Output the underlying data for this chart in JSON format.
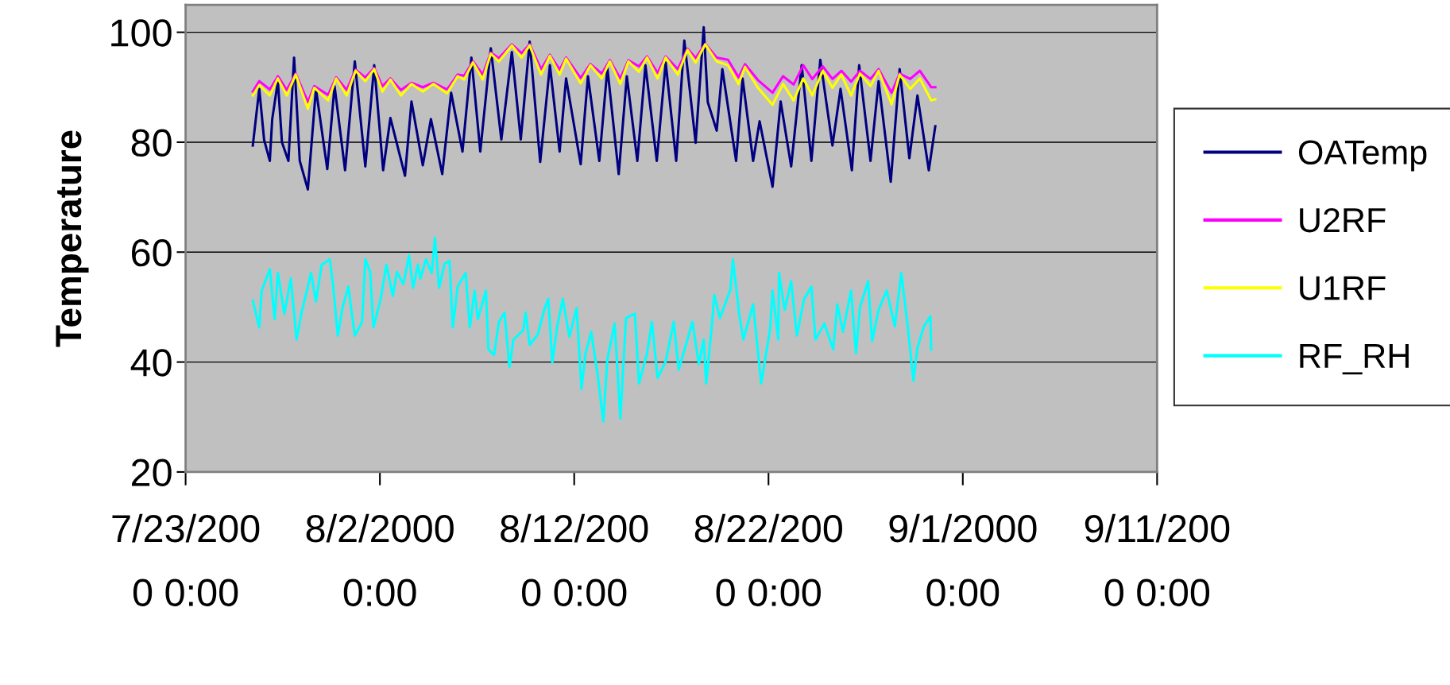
{
  "chart_data": {
    "type": "line",
    "ylabel": "Temperature",
    "line_style": "solid",
    "grid": "y",
    "legend": "right",
    "xlim": [
      "2000-07-23",
      "2000-09-11"
    ],
    "xticks": [
      {
        "value": "2000-07-23",
        "label": "7/23/2000 0:00"
      },
      {
        "value": "2000-08-02",
        "label": "8/2/2000 0:00"
      },
      {
        "value": "2000-08-12",
        "label": "8/12/2000 0:00"
      },
      {
        "value": "2000-08-22",
        "label": "8/22/2000 0:00"
      },
      {
        "value": "2000-09-01",
        "label": "9/1/2000 0:00"
      },
      {
        "value": "2000-09-11",
        "label": "9/11/2000 0:00"
      }
    ],
    "ylim": [
      20,
      105
    ],
    "yticks": [
      20,
      40,
      60,
      80,
      100
    ],
    "x": [
      "2000-07-26T11:00",
      "2000-07-26T19:00",
      "2000-07-27T08:00",
      "2000-07-27T18:00",
      "2000-07-28T05:00",
      "2000-07-28T16:00",
      "2000-07-29T07:00",
      "2000-07-29T15:00",
      "2000-07-30T08:00",
      "2000-07-30T18:00",
      "2000-07-31T07:00",
      "2000-07-31T18:00",
      "2000-08-01T06:00",
      "2000-08-01T17:00",
      "2000-08-02T03:00",
      "2000-08-02T13:00",
      "2000-08-03T02:00",
      "2000-08-03T15:00",
      "2000-08-04T05:00",
      "2000-08-04T18:00",
      "2000-08-05T11:00",
      "2000-08-06T00:00",
      "2000-08-06T08:00",
      "2000-08-06T19:00",
      "2000-08-07T07:00",
      "2000-08-07T17:00",
      "2000-08-08T03:00",
      "2000-08-08T19:00",
      "2000-08-09T07:00",
      "2000-08-09T17:00",
      "2000-08-10T07:00",
      "2000-08-10T18:00",
      "2000-08-11T06:00",
      "2000-08-11T14:00",
      "2000-08-12T08:00",
      "2000-08-12T20:00",
      "2000-08-13T10:00",
      "2000-08-13T20:00",
      "2000-08-14T09:00",
      "2000-08-14T19:00",
      "2000-08-15T08:00",
      "2000-08-15T18:00",
      "2000-08-16T07:00",
      "2000-08-16T17:00",
      "2000-08-17T08:00",
      "2000-08-17T20:00",
      "2000-08-18T06:00",
      "2000-08-18T18:00",
      "2000-08-19T08:00",
      "2000-08-19T22:00",
      "2000-08-20T11:00",
      "2000-08-20T19:00",
      "2000-08-21T11:00",
      "2000-08-22T05:00",
      "2000-08-22T18:00",
      "2000-08-23T07:00",
      "2000-08-23T19:00",
      "2000-08-24T06:00",
      "2000-08-24T19:00",
      "2000-08-25T07:00",
      "2000-08-25T18:00",
      "2000-08-26T06:00",
      "2000-08-26T17:00",
      "2000-08-27T06:00",
      "2000-08-27T16:00",
      "2000-08-28T08:00",
      "2000-08-28T18:00",
      "2000-08-29T07:00",
      "2000-08-29T19:00",
      "2000-08-30T09:00",
      "2000-08-30T14:00"
    ],
    "series": [
      {
        "name": "OATemp",
        "color": "#000080",
        "x": [
          "2000-07-26T11:00",
          "2000-07-26T19:00",
          "2000-07-27T01:00",
          "2000-07-27T08:00",
          "2000-07-27T11:00",
          "2000-07-27T18:00",
          "2000-07-27T23:00",
          "2000-07-28T07:00",
          "2000-07-28T14:00",
          "2000-07-28T21:00",
          "2000-07-29T07:00",
          "2000-07-29T17:00",
          "2000-07-30T07:00",
          "2000-07-30T16:00",
          "2000-07-31T05:00",
          "2000-07-31T17:00",
          "2000-08-01T06:00",
          "2000-08-01T17:00",
          "2000-08-02T04:00",
          "2000-08-02T13:00",
          "2000-08-03T07:00",
          "2000-08-03T15:00",
          "2000-08-04T05:00",
          "2000-08-04T15:00",
          "2000-08-05T05:00",
          "2000-08-05T16:00",
          "2000-08-06T06:00",
          "2000-08-06T17:00",
          "2000-08-07T04:00",
          "2000-08-07T17:00",
          "2000-08-08T06:00",
          "2000-08-08T19:00",
          "2000-08-09T06:00",
          "2000-08-09T17:00",
          "2000-08-10T06:00",
          "2000-08-10T18:00",
          "2000-08-11T06:00",
          "2000-08-11T14:00",
          "2000-08-12T08:00",
          "2000-08-12T17:00",
          "2000-08-13T07:00",
          "2000-08-13T17:00",
          "2000-08-14T07:00",
          "2000-08-14T17:00",
          "2000-08-15T06:00",
          "2000-08-15T16:00",
          "2000-08-16T06:00",
          "2000-08-16T17:00",
          "2000-08-17T06:00",
          "2000-08-17T16:00",
          "2000-08-18T06:00",
          "2000-08-18T16:00",
          "2000-08-18T21:00",
          "2000-08-19T08:00",
          "2000-08-19T15:00",
          "2000-08-20T08:00",
          "2000-08-20T16:00",
          "2000-08-21T05:00",
          "2000-08-21T13:00",
          "2000-08-22T05:00",
          "2000-08-22T15:00",
          "2000-08-23T04:00",
          "2000-08-23T17:00",
          "2000-08-24T05:00",
          "2000-08-24T16:00",
          "2000-08-25T07:00",
          "2000-08-25T17:00",
          "2000-08-26T07:00",
          "2000-08-26T16:00",
          "2000-08-27T06:00",
          "2000-08-27T16:00",
          "2000-08-28T07:00",
          "2000-08-28T18:00",
          "2000-08-29T06:00",
          "2000-08-29T16:00",
          "2000-08-30T06:00",
          "2000-08-30T14:00"
        ],
        "values": [
          79.4,
          89.7,
          80.4,
          76.6,
          84.2,
          91.1,
          80.0,
          76.6,
          95.4,
          76.6,
          71.4,
          89.7,
          75.1,
          90.2,
          74.9,
          94.7,
          75.6,
          94.0,
          74.9,
          84.4,
          73.9,
          87.4,
          75.8,
          84.2,
          74.2,
          89.0,
          78.3,
          95.4,
          78.3,
          97.1,
          80.5,
          96.4,
          80.5,
          98.3,
          76.4,
          94.0,
          78.3,
          91.6,
          76.0,
          92.0,
          76.6,
          93.5,
          74.2,
          92.0,
          76.6,
          94.0,
          76.6,
          94.5,
          76.6,
          98.5,
          79.9,
          100.9,
          87.3,
          82.1,
          93.3,
          76.6,
          91.6,
          76.6,
          83.8,
          71.9,
          87.4,
          75.6,
          94.0,
          76.6,
          95.0,
          79.4,
          89.7,
          74.9,
          94.0,
          76.6,
          91.1,
          72.8,
          93.3,
          77.1,
          88.5,
          74.9,
          82.9
        ]
      },
      {
        "name": "U2RF",
        "color": "#ff00ff",
        "values": [
          89.2,
          91.1,
          89.6,
          92.0,
          89.5,
          92.5,
          87.3,
          90.2,
          88.6,
          91.8,
          89.5,
          93.2,
          91.8,
          93.5,
          90.2,
          91.6,
          89.5,
          90.8,
          90.0,
          90.8,
          89.6,
          92.3,
          92.1,
          94.7,
          92.3,
          96.3,
          95.3,
          97.8,
          96.2,
          97.8,
          93.3,
          95.9,
          93.2,
          95.4,
          91.7,
          94.2,
          92.5,
          94.9,
          91.6,
          94.9,
          93.8,
          95.6,
          92.6,
          95.6,
          93.3,
          97.0,
          95.3,
          97.9,
          95.4,
          95.0,
          91.8,
          94.2,
          91.3,
          89.0,
          92.0,
          90.5,
          94.0,
          91.5,
          93.8,
          91.5,
          93.0,
          91.0,
          93.0,
          91.5,
          93.3,
          89.0,
          92.5,
          91.5,
          93.0,
          90.0,
          90.0
        ]
      },
      {
        "name": "U1RF",
        "color": "#ffff00",
        "values": [
          88.5,
          90.4,
          88.5,
          91.6,
          88.5,
          92.3,
          86.1,
          89.9,
          87.6,
          91.6,
          88.5,
          93.0,
          91.1,
          93.3,
          89.2,
          91.4,
          88.5,
          90.6,
          89.2,
          90.6,
          88.9,
          92.0,
          91.4,
          94.5,
          91.4,
          96.1,
          94.7,
          97.6,
          95.4,
          97.6,
          92.3,
          95.7,
          92.3,
          95.2,
          90.7,
          94.0,
          91.6,
          94.7,
          90.6,
          94.7,
          92.8,
          95.4,
          91.6,
          95.4,
          92.3,
          96.8,
          94.5,
          97.8,
          94.7,
          94.0,
          90.6,
          93.7,
          89.9,
          86.8,
          90.6,
          87.6,
          91.6,
          88.5,
          93.0,
          89.9,
          92.3,
          88.5,
          92.5,
          90.2,
          93.0,
          86.9,
          92.3,
          89.7,
          91.6,
          87.6,
          87.8
        ]
      },
      {
        "name": "RF_RH",
        "color": "#00ffff",
        "x": [
          "2000-07-26T11:00",
          "2000-07-26T19:00",
          "2000-07-26T22:00",
          "2000-07-27T08:00",
          "2000-07-27T14:00",
          "2000-07-27T18:00",
          "2000-07-28T02:00",
          "2000-07-28T10:00",
          "2000-07-28T17:00",
          "2000-07-28T23:00",
          "2000-07-29T11:00",
          "2000-07-29T17:00",
          "2000-07-30T00:00",
          "2000-07-30T10:00",
          "2000-07-30T14:00",
          "2000-07-30T20:00",
          "2000-07-31T02:00",
          "2000-07-31T09:00",
          "2000-07-31T17:00",
          "2000-08-01T02:00",
          "2000-08-01T06:00",
          "2000-08-01T12:00",
          "2000-08-01T16:00",
          "2000-08-02T01:00",
          "2000-08-02T08:00",
          "2000-08-02T16:00",
          "2000-08-02T21:00",
          "2000-08-03T05:00",
          "2000-08-03T12:00",
          "2000-08-03T17:00",
          "2000-08-03T23:00",
          "2000-08-04T02:00",
          "2000-08-04T09:00",
          "2000-08-04T16:00",
          "2000-08-04T20:00",
          "2000-08-05T01:00",
          "2000-08-05T08:00",
          "2000-08-05T14:00",
          "2000-08-05T18:00",
          "2000-08-06T00:00",
          "2000-08-06T10:00",
          "2000-08-06T15:00",
          "2000-08-06T21:00",
          "2000-08-07T01:00",
          "2000-08-07T11:00",
          "2000-08-07T14:00",
          "2000-08-07T21:00",
          "2000-08-08T03:00",
          "2000-08-08T10:00",
          "2000-08-08T16:00",
          "2000-08-08T21:00",
          "2000-08-09T09:00",
          "2000-08-09T12:00",
          "2000-08-09T17:00",
          "2000-08-10T03:00",
          "2000-08-10T11:00",
          "2000-08-10T16:00",
          "2000-08-10T21:00",
          "2000-08-11T03:00",
          "2000-08-11T10:00",
          "2000-08-11T18:00",
          "2000-08-12T03:00",
          "2000-08-12T09:00",
          "2000-08-12T14:00",
          "2000-08-12T21:00",
          "2000-08-13T05:00",
          "2000-08-13T12:00",
          "2000-08-13T17:00",
          "2000-08-14T02:00",
          "2000-08-14T09:00",
          "2000-08-14T16:00",
          "2000-08-15T03:00",
          "2000-08-15T08:00",
          "2000-08-15T18:00",
          "2000-08-16T00:00",
          "2000-08-16T07:00",
          "2000-08-16T17:00",
          "2000-08-17T03:00",
          "2000-08-17T09:00",
          "2000-08-17T17:00",
          "2000-08-18T02:00",
          "2000-08-18T10:00",
          "2000-08-18T16:00",
          "2000-08-18T19:00",
          "2000-08-19T02:00",
          "2000-08-19T05:00",
          "2000-08-19T12:00",
          "2000-08-20T01:00",
          "2000-08-20T04:00",
          "2000-08-20T12:00",
          "2000-08-20T17:00",
          "2000-08-21T05:00",
          "2000-08-21T15:00",
          "2000-08-22T02:00",
          "2000-08-22T05:00",
          "2000-08-22T12:00",
          "2000-08-22T13:00",
          "2000-08-22T20:00",
          "2000-08-23T04:00",
          "2000-08-23T11:00",
          "2000-08-23T20:00",
          "2000-08-24T05:00",
          "2000-08-24T10:00",
          "2000-08-24T21:00",
          "2000-08-25T08:00",
          "2000-08-25T13:00",
          "2000-08-25T20:00",
          "2000-08-26T06:00",
          "2000-08-26T12:00",
          "2000-08-26T17:00",
          "2000-08-27T03:00",
          "2000-08-27T08:00",
          "2000-08-27T16:00",
          "2000-08-28T02:00",
          "2000-08-28T12:00",
          "2000-08-28T20:00",
          "2000-08-29T04:00",
          "2000-08-29T11:00",
          "2000-08-29T16:00",
          "2000-08-30T00:00",
          "2000-08-30T08:00",
          "2000-08-30T09:00"
        ],
        "values": [
          51.2,
          46.3,
          53.0,
          56.9,
          47.8,
          56.2,
          48.8,
          55.2,
          44.1,
          48.8,
          56.2,
          51.0,
          57.7,
          58.7,
          54.2,
          44.8,
          50.0,
          53.7,
          44.8,
          47.3,
          58.7,
          56.4,
          46.3,
          51.5,
          57.7,
          52.0,
          56.4,
          54.2,
          59.4,
          53.5,
          57.7,
          55.2,
          58.7,
          56.2,
          62.6,
          53.5,
          57.9,
          58.4,
          46.3,
          53.7,
          56.2,
          46.3,
          53.0,
          47.8,
          53.0,
          42.3,
          41.3,
          47.3,
          49.0,
          39.1,
          44.1,
          45.8,
          49.0,
          43.1,
          45.0,
          49.5,
          51.5,
          39.9,
          46.5,
          51.5,
          44.6,
          49.8,
          35.1,
          41.6,
          45.5,
          37.6,
          29.2,
          40.6,
          47.0,
          29.7,
          48.0,
          48.8,
          36.1,
          41.6,
          47.3,
          37.1,
          40.1,
          47.3,
          38.6,
          42.6,
          47.3,
          39.6,
          44.1,
          36.1,
          46.5,
          52.2,
          48.0,
          53.2,
          58.7,
          48.5,
          44.1,
          50.5,
          36.1,
          46.0,
          53.0,
          44.1,
          56.2,
          49.5,
          54.7,
          44.8,
          51.5,
          53.7,
          44.1,
          47.0,
          42.3,
          50.5,
          45.5,
          53.0,
          41.6,
          50.0,
          54.7,
          43.8,
          49.5,
          53.0,
          46.5,
          56.2,
          46.5,
          36.6,
          42.6,
          46.5,
          48.3,
          42.3
        ]
      }
    ]
  }
}
